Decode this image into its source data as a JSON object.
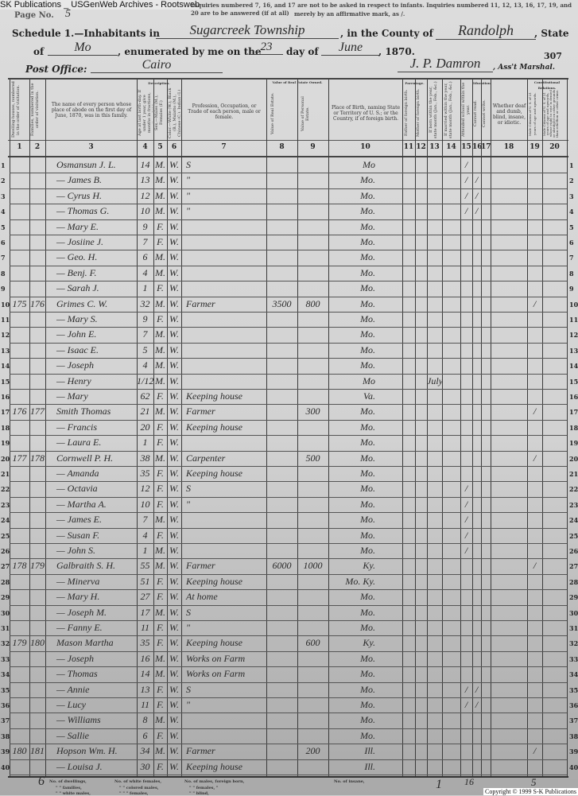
{
  "watermark": "SK Publications _ USGenWeb Archives - Rootsweb",
  "page_no_label": "Page No.",
  "page_no_value": "5",
  "instructions_line1": "Inquiries numbered 7, 16, and 17 are not to be asked in respect to infants. Inquiries numbered 11, 12, 13, 16, 17, 19, and 20 are to be answered (if at all)",
  "instructions_line2": "merely by an affirmative mark, as /.",
  "schedule_label": "Schedule 1.—Inhabitants in",
  "township": "Sugarcreek Township",
  "county_label": ", in the County of",
  "county": "Randolph",
  "state_label": ", State",
  "of_label": "of",
  "state": "Mo",
  "enumerated_label": ", enumerated by me on the",
  "day": "23",
  "day_label": "day of",
  "month": "June",
  "year_label": ", 1870.",
  "sheet_number": "307",
  "post_office_label": "Post Office:",
  "post_office": "Cairo",
  "marshal_signature": "J. P. Damron",
  "marshal_label": ", Ass't Marshal.",
  "headers": {
    "col1": "Dwelling-houses, numbered in the order of visitation.",
    "col2": "Families, numbered in the order of visitation.",
    "col3": "The name of every person whose place of abode on the first day of June, 1870, was in this family.",
    "description": "Description.",
    "col4": "Age at last birth-day. If under 1 year, give months in fractions, thus, 3/12.",
    "col5": "Sex.—Males (M.), Females (F.)",
    "col6": "Color.—White (W.), Black (B.), Mulatto (M.), Chinese (C.), Indian (I.)",
    "col7": "Profession, Occupation, or Trade of each person, male or female.",
    "value_group": "Value of Real Estate Owned.",
    "col8": "Value of Real Estate.",
    "col9": "Value of Personal Estate.",
    "col10": "Place of Birth, naming State or Territory of U. S.; or the Country, if of foreign birth.",
    "parentage": "Parentage.",
    "col11": "Father of foreign birth.",
    "col12": "Mother of foreign birth.",
    "col13": "If born within the year, state month (Jan., Feb., &c.)",
    "col14": "If married within the year, state month (Jan., Feb., &c.)",
    "col15": "Attended school within the year.",
    "education": "Education.",
    "col16": "Cannot read.",
    "col17": "Cannot write.",
    "col18": "Whether deaf and dumb, blind, insane, or idiotic.",
    "constitutional": "Constitutional Relations.",
    "col19": "Male Citizens of U. S. of 21 years of age and upwards.",
    "col20": "Male Citizens of U. S. of 21 years of age and upwards, whose right to vote is denied or abridged on other grounds than rebellion or other crime."
  },
  "column_numbers": [
    "1",
    "2",
    "3",
    "4",
    "5",
    "6",
    "7",
    "8",
    "9",
    "10",
    "11",
    "12",
    "13",
    "14",
    "15",
    "16",
    "17",
    "18",
    "19",
    "20"
  ],
  "rows": [
    {
      "n": "1",
      "dw": "",
      "fam": "",
      "name": "Osmansun J. L.",
      "age": "14",
      "sex": "M.",
      "color": "W.",
      "occ": "S",
      "real": "",
      "pers": "",
      "birth": "Mo",
      "c13": "",
      "c15": "/",
      "c16": "",
      "c19": ""
    },
    {
      "n": "2",
      "dw": "",
      "fam": "",
      "name": "— James B.",
      "age": "13",
      "sex": "M.",
      "color": "W.",
      "occ": "\"",
      "real": "",
      "pers": "",
      "birth": "Mo.",
      "c13": "",
      "c15": "/",
      "c16": "/",
      "c19": ""
    },
    {
      "n": "3",
      "dw": "",
      "fam": "",
      "name": "— Cyrus H.",
      "age": "12",
      "sex": "M.",
      "color": "W.",
      "occ": "\"",
      "real": "",
      "pers": "",
      "birth": "Mo.",
      "c13": "",
      "c15": "/",
      "c16": "/",
      "c19": ""
    },
    {
      "n": "4",
      "dw": "",
      "fam": "",
      "name": "— Thomas G.",
      "age": "10",
      "sex": "M.",
      "color": "W.",
      "occ": "\"",
      "real": "",
      "pers": "",
      "birth": "Mo.",
      "c13": "",
      "c15": "/",
      "c16": "/",
      "c19": ""
    },
    {
      "n": "5",
      "dw": "",
      "fam": "",
      "name": "— Mary E.",
      "age": "9",
      "sex": "F.",
      "color": "W.",
      "occ": "",
      "real": "",
      "pers": "",
      "birth": "Mo.",
      "c13": "",
      "c15": "",
      "c16": "",
      "c19": ""
    },
    {
      "n": "6",
      "dw": "",
      "fam": "",
      "name": "— Josiine J.",
      "age": "7",
      "sex": "F.",
      "color": "W.",
      "occ": "",
      "real": "",
      "pers": "",
      "birth": "Mo.",
      "c13": "",
      "c15": "",
      "c16": "",
      "c19": ""
    },
    {
      "n": "7",
      "dw": "",
      "fam": "",
      "name": "— Geo. H.",
      "age": "6",
      "sex": "M.",
      "color": "W.",
      "occ": "",
      "real": "",
      "pers": "",
      "birth": "Mo.",
      "c13": "",
      "c15": "",
      "c16": "",
      "c19": ""
    },
    {
      "n": "8",
      "dw": "",
      "fam": "",
      "name": "— Benj. F.",
      "age": "4",
      "sex": "M.",
      "color": "W.",
      "occ": "",
      "real": "",
      "pers": "",
      "birth": "Mo.",
      "c13": "",
      "c15": "",
      "c16": "",
      "c19": ""
    },
    {
      "n": "9",
      "dw": "",
      "fam": "",
      "name": "— Sarah J.",
      "age": "1",
      "sex": "F.",
      "color": "W.",
      "occ": "",
      "real": "",
      "pers": "",
      "birth": "Mo.",
      "c13": "",
      "c15": "",
      "c16": "",
      "c19": ""
    },
    {
      "n": "10",
      "dw": "175",
      "fam": "176",
      "name": "Grimes C. W.",
      "age": "32",
      "sex": "M.",
      "color": "W.",
      "occ": "Farmer",
      "real": "3500",
      "pers": "800",
      "birth": "Mo.",
      "c13": "",
      "c15": "",
      "c16": "",
      "c19": "/"
    },
    {
      "n": "11",
      "dw": "",
      "fam": "",
      "name": "— Mary S.",
      "age": "9",
      "sex": "F.",
      "color": "W.",
      "occ": "",
      "real": "",
      "pers": "",
      "birth": "Mo.",
      "c13": "",
      "c15": "",
      "c16": "",
      "c19": ""
    },
    {
      "n": "12",
      "dw": "",
      "fam": "",
      "name": "— John E.",
      "age": "7",
      "sex": "M.",
      "color": "W.",
      "occ": "",
      "real": "",
      "pers": "",
      "birth": "Mo.",
      "c13": "",
      "c15": "",
      "c16": "",
      "c19": ""
    },
    {
      "n": "13",
      "dw": "",
      "fam": "",
      "name": "— Isaac E.",
      "age": "5",
      "sex": "M.",
      "color": "W.",
      "occ": "",
      "real": "",
      "pers": "",
      "birth": "Mo.",
      "c13": "",
      "c15": "",
      "c16": "",
      "c19": ""
    },
    {
      "n": "14",
      "dw": "",
      "fam": "",
      "name": "— Joseph",
      "age": "4",
      "sex": "M.",
      "color": "W.",
      "occ": "",
      "real": "",
      "pers": "",
      "birth": "Mo.",
      "c13": "",
      "c15": "",
      "c16": "",
      "c19": ""
    },
    {
      "n": "15",
      "dw": "",
      "fam": "",
      "name": "— Henry",
      "age": "1/12",
      "sex": "M.",
      "color": "W.",
      "occ": "",
      "real": "",
      "pers": "",
      "birth": "Mo",
      "c13": "July",
      "c15": "",
      "c16": "",
      "c19": ""
    },
    {
      "n": "16",
      "dw": "",
      "fam": "",
      "name": "— Mary",
      "age": "62",
      "sex": "F.",
      "color": "W.",
      "occ": "Keeping house",
      "real": "",
      "pers": "",
      "birth": "Va.",
      "c13": "",
      "c15": "",
      "c16": "",
      "c19": ""
    },
    {
      "n": "17",
      "dw": "176",
      "fam": "177",
      "name": "Smith Thomas",
      "age": "21",
      "sex": "M.",
      "color": "W.",
      "occ": "Farmer",
      "real": "",
      "pers": "300",
      "birth": "Mo.",
      "c13": "",
      "c15": "",
      "c16": "",
      "c19": "/"
    },
    {
      "n": "18",
      "dw": "",
      "fam": "",
      "name": "— Francis",
      "age": "20",
      "sex": "F.",
      "color": "W.",
      "occ": "Keeping house",
      "real": "",
      "pers": "",
      "birth": "Mo.",
      "c13": "",
      "c15": "",
      "c16": "",
      "c19": ""
    },
    {
      "n": "19",
      "dw": "",
      "fam": "",
      "name": "— Laura E.",
      "age": "1",
      "sex": "F.",
      "color": "W.",
      "occ": "",
      "real": "",
      "pers": "",
      "birth": "Mo.",
      "c13": "",
      "c15": "",
      "c16": "",
      "c19": ""
    },
    {
      "n": "20",
      "dw": "177",
      "fam": "178",
      "name": "Cornwell P. H.",
      "age": "38",
      "sex": "M.",
      "color": "W.",
      "occ": "Carpenter",
      "real": "",
      "pers": "500",
      "birth": "Mo.",
      "c13": "",
      "c15": "",
      "c16": "",
      "c19": "/"
    },
    {
      "n": "21",
      "dw": "",
      "fam": "",
      "name": "— Amanda",
      "age": "35",
      "sex": "F.",
      "color": "W.",
      "occ": "Keeping house",
      "real": "",
      "pers": "",
      "birth": "Mo.",
      "c13": "",
      "c15": "",
      "c16": "",
      "c19": ""
    },
    {
      "n": "22",
      "dw": "",
      "fam": "",
      "name": "— Octavia",
      "age": "12",
      "sex": "F.",
      "color": "W.",
      "occ": "S",
      "real": "",
      "pers": "",
      "birth": "Mo.",
      "c13": "",
      "c15": "/",
      "c16": "",
      "c19": ""
    },
    {
      "n": "23",
      "dw": "",
      "fam": "",
      "name": "— Martha A.",
      "age": "10",
      "sex": "F.",
      "color": "W.",
      "occ": "\"",
      "real": "",
      "pers": "",
      "birth": "Mo.",
      "c13": "",
      "c15": "/",
      "c16": "",
      "c19": ""
    },
    {
      "n": "24",
      "dw": "",
      "fam": "",
      "name": "— James E.",
      "age": "7",
      "sex": "M.",
      "color": "W.",
      "occ": "",
      "real": "",
      "pers": "",
      "birth": "Mo.",
      "c13": "",
      "c15": "/",
      "c16": "",
      "c19": ""
    },
    {
      "n": "25",
      "dw": "",
      "fam": "",
      "name": "— Susan F.",
      "age": "4",
      "sex": "F.",
      "color": "W.",
      "occ": "",
      "real": "",
      "pers": "",
      "birth": "Mo.",
      "c13": "",
      "c15": "/",
      "c16": "",
      "c19": ""
    },
    {
      "n": "26",
      "dw": "",
      "fam": "",
      "name": "— John S.",
      "age": "1",
      "sex": "M.",
      "color": "W.",
      "occ": "",
      "real": "",
      "pers": "",
      "birth": "Mo.",
      "c13": "",
      "c15": "/",
      "c16": "",
      "c19": ""
    },
    {
      "n": "27",
      "dw": "178",
      "fam": "179",
      "name": "Galbraith S. H.",
      "age": "55",
      "sex": "M.",
      "color": "W.",
      "occ": "Farmer",
      "real": "6000",
      "pers": "1000",
      "birth": "Ky.",
      "c13": "",
      "c15": "",
      "c16": "",
      "c19": "/"
    },
    {
      "n": "28",
      "dw": "",
      "fam": "",
      "name": "— Minerva",
      "age": "51",
      "sex": "F.",
      "color": "W.",
      "occ": "Keeping house",
      "real": "",
      "pers": "",
      "birth": "Mo. Ky.",
      "c13": "",
      "c15": "",
      "c16": "",
      "c19": ""
    },
    {
      "n": "29",
      "dw": "",
      "fam": "",
      "name": "— Mary H.",
      "age": "27",
      "sex": "F.",
      "color": "W.",
      "occ": "At home",
      "real": "",
      "pers": "",
      "birth": "Mo.",
      "c13": "",
      "c15": "",
      "c16": "",
      "c19": ""
    },
    {
      "n": "30",
      "dw": "",
      "fam": "",
      "name": "— Joseph M.",
      "age": "17",
      "sex": "M.",
      "color": "W.",
      "occ": "S",
      "real": "",
      "pers": "",
      "birth": "Mo.",
      "c13": "",
      "c15": "",
      "c16": "",
      "c19": ""
    },
    {
      "n": "31",
      "dw": "",
      "fam": "",
      "name": "— Fanny E.",
      "age": "11",
      "sex": "F.",
      "color": "W.",
      "occ": "\"",
      "real": "",
      "pers": "",
      "birth": "Mo.",
      "c13": "",
      "c15": "",
      "c16": "",
      "c19": ""
    },
    {
      "n": "32",
      "dw": "179",
      "fam": "180",
      "name": "Mason Martha",
      "age": "35",
      "sex": "F.",
      "color": "W.",
      "occ": "Keeping house",
      "real": "",
      "pers": "600",
      "birth": "Ky.",
      "c13": "",
      "c15": "",
      "c16": "",
      "c19": ""
    },
    {
      "n": "33",
      "dw": "",
      "fam": "",
      "name": "— Joseph",
      "age": "16",
      "sex": "M.",
      "color": "W.",
      "occ": "Works on Farm",
      "real": "",
      "pers": "",
      "birth": "Mo.",
      "c13": "",
      "c15": "",
      "c16": "",
      "c19": ""
    },
    {
      "n": "34",
      "dw": "",
      "fam": "",
      "name": "— Thomas",
      "age": "14",
      "sex": "M.",
      "color": "W.",
      "occ": "Works on Farm",
      "real": "",
      "pers": "",
      "birth": "Mo.",
      "c13": "",
      "c15": "",
      "c16": "",
      "c19": ""
    },
    {
      "n": "35",
      "dw": "",
      "fam": "",
      "name": "— Annie",
      "age": "13",
      "sex": "F.",
      "color": "W.",
      "occ": "S",
      "real": "",
      "pers": "",
      "birth": "Mo.",
      "c13": "",
      "c15": "/",
      "c16": "/",
      "c19": ""
    },
    {
      "n": "36",
      "dw": "",
      "fam": "",
      "name": "— Lucy",
      "age": "11",
      "sex": "F.",
      "color": "W.",
      "occ": "\"",
      "real": "",
      "pers": "",
      "birth": "Mo.",
      "c13": "",
      "c15": "/",
      "c16": "/",
      "c19": ""
    },
    {
      "n": "37",
      "dw": "",
      "fam": "",
      "name": "— Williams",
      "age": "8",
      "sex": "M.",
      "color": "W.",
      "occ": "",
      "real": "",
      "pers": "",
      "birth": "Mo.",
      "c13": "",
      "c15": "",
      "c16": "",
      "c19": ""
    },
    {
      "n": "38",
      "dw": "",
      "fam": "",
      "name": "— Sallie",
      "age": "6",
      "sex": "F.",
      "color": "W.",
      "occ": "",
      "real": "",
      "pers": "",
      "birth": "Mo.",
      "c13": "",
      "c15": "",
      "c16": "",
      "c19": ""
    },
    {
      "n": "39",
      "dw": "180",
      "fam": "181",
      "name": "Hopson Wm. H.",
      "age": "34",
      "sex": "M.",
      "color": "W.",
      "occ": "Farmer",
      "real": "",
      "pers": "200",
      "birth": "Ill.",
      "c13": "",
      "c15": "",
      "c16": "",
      "c19": "/"
    },
    {
      "n": "40",
      "dw": "",
      "fam": "",
      "name": "— Louisa J.",
      "age": "30",
      "sex": "F.",
      "color": "W.",
      "occ": "Keeping house",
      "real": "",
      "pers": "",
      "birth": "Ill.",
      "c13": "",
      "c15": "",
      "c16": "",
      "c19": ""
    }
  ],
  "footer": {
    "dwellings": "No. of dwellings,",
    "families": "\" \" families,",
    "white_males": "\" \" white males,",
    "white_females": "No. of white females,",
    "colored_males": "\" \" colored males,",
    "colored_females": "\" \" \" females,",
    "foreign_males": "No. of males, foreign born,",
    "foreign_females": "\" \" females, \"",
    "blind": "\" \" blind,",
    "insane": "No. of insane,",
    "tally_mark": "6",
    "tally_1": "1",
    "tally_16": "16",
    "tally_5": "5"
  },
  "copyright": "Copyright © 1999 S-K Publications"
}
